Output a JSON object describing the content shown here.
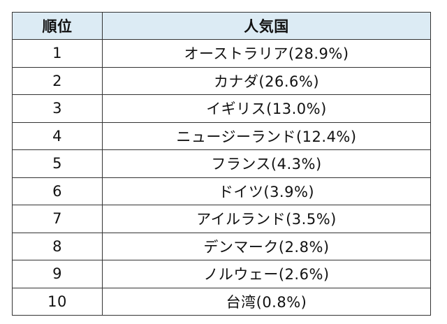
{
  "table": {
    "headers": {
      "rank": "順位",
      "country": "人気国"
    },
    "rows": [
      {
        "rank": "1",
        "country": "オーストラリア(28.9%)"
      },
      {
        "rank": "2",
        "country": "カナダ(26.6%)"
      },
      {
        "rank": "3",
        "country": "イギリス(13.0%)"
      },
      {
        "rank": "4",
        "country": "ニュージーランド(12.4%)"
      },
      {
        "rank": "5",
        "country": "フランス(4.3%)"
      },
      {
        "rank": "6",
        "country": "ドイツ(3.9%)"
      },
      {
        "rank": "7",
        "country": "アイルランド(3.5%)"
      },
      {
        "rank": "8",
        "country": "デンマーク(2.8%)"
      },
      {
        "rank": "9",
        "country": "ノルウェー(2.6%)"
      },
      {
        "rank": "10",
        "country": "台湾(0.8%)"
      }
    ],
    "header_bg": "#dcebf4"
  }
}
